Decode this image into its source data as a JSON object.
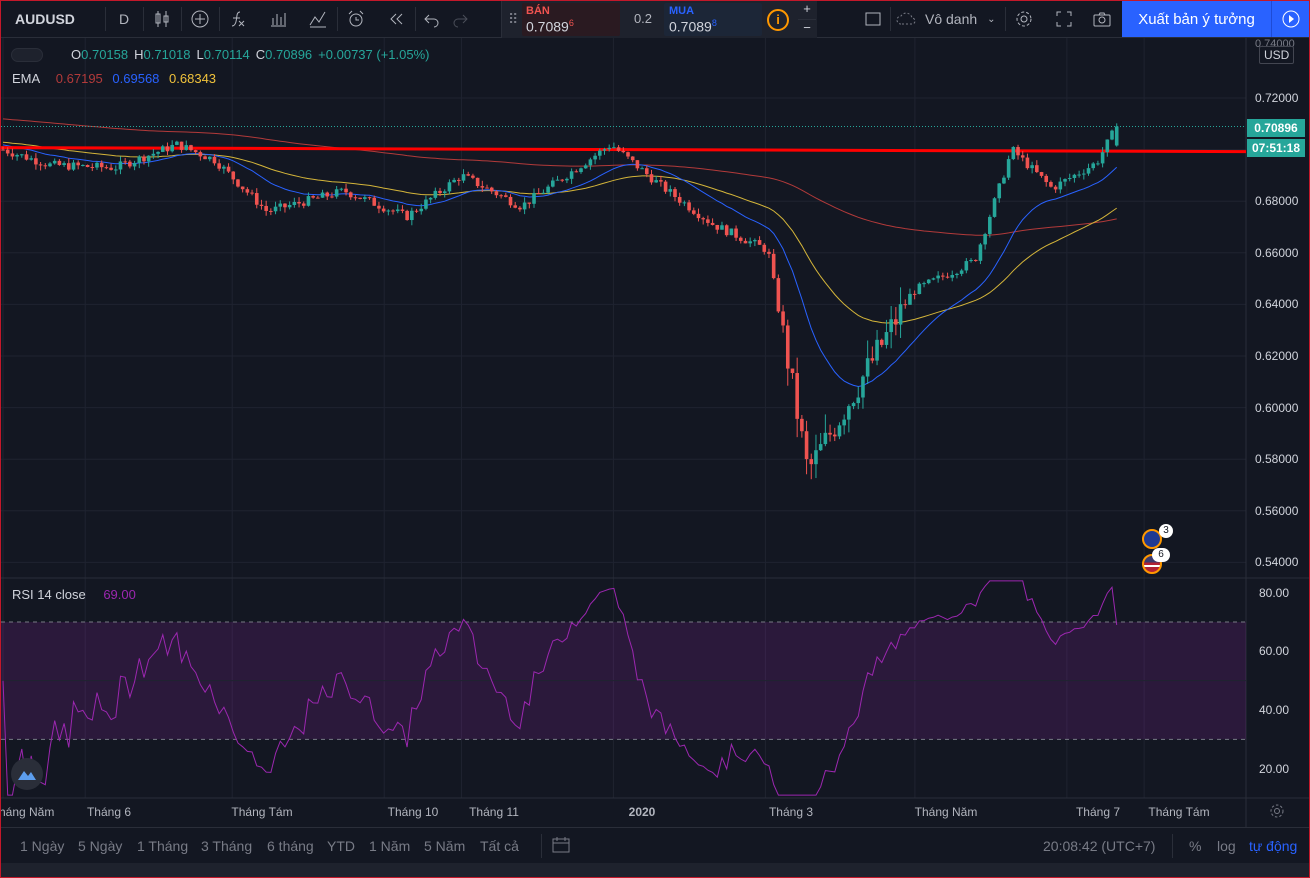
{
  "toolbar": {
    "symbol": "AUDUSD",
    "interval": "D",
    "sell_label": "BÁN",
    "sell_price": "0.7089",
    "sell_sup": "6",
    "spread": "0.2",
    "buy_label": "MUA",
    "buy_price": "0.7089",
    "buy_sup": "8",
    "layout_name": "Vô danh",
    "publish_label": "Xuất bản ý tưởng",
    "plus": "+",
    "minus": "−"
  },
  "legend": {
    "o_label": "O",
    "o_val": "0.70158",
    "h_label": "H",
    "h_val": "0.71018",
    "l_label": "L",
    "l_val": "0.70114",
    "c_label": "C",
    "c_val": "0.70896",
    "change": "+0.00737 (+1.05%)"
  },
  "ema": {
    "label": "EMA",
    "v1": "0.67195",
    "v2": "0.69568",
    "v3": "0.68343"
  },
  "rsi": {
    "label": "RSI 14 close",
    "value": "69.00"
  },
  "currency": "USD",
  "price_badge": "0.70896",
  "time_badge": "07:51:18",
  "y_ticks": [
    "0.72000",
    "0.70000",
    "0.68000",
    "0.66000",
    "0.64000",
    "0.62000",
    "0.60000",
    "0.58000",
    "0.56000",
    "0.54000"
  ],
  "y_top_partial": "0.74000",
  "rsi_ticks": [
    "80.00",
    "60.00",
    "40.00",
    "20.00"
  ],
  "x_ticks": [
    "Tháng Năm",
    "Tháng 6",
    "Tháng Tám",
    "Tháng 10",
    "Tháng 11",
    "2020",
    "Tháng 3",
    "Tháng Năm",
    "Tháng 7",
    "Tháng Tám"
  ],
  "events": {
    "au_count": "3",
    "us_count": "6"
  },
  "ranges": [
    "1 Ngày",
    "5 Ngày",
    "1 Tháng",
    "3 Tháng",
    "6 tháng",
    "YTD",
    "1 Năm",
    "5 Năm",
    "Tất cả"
  ],
  "clock": "20:08:42 (UTC+7)",
  "pct": "%",
  "log": "log",
  "auto": "tự động",
  "colors": {
    "bg": "#131722",
    "up": "#26a69a",
    "down": "#ef5350",
    "ema_fast": "#2962ff",
    "ema_mid": "#d4b53a",
    "ema_slow": "#b23a3a",
    "rsi": "#9c27b0",
    "hline": "#ff0000",
    "accent": "#2962ff"
  },
  "chart_data": {
    "type": "candlestick",
    "symbol": "AUDUSD",
    "timeframe": "D",
    "ylim": [
      0.535,
      0.745
    ],
    "last": {
      "open": 0.70158,
      "high": 0.71018,
      "low": 0.70114,
      "close": 0.70896
    },
    "horizontal_line": 0.7,
    "close_path": [
      {
        "t": "2019-05-01",
        "c": 0.7
      },
      {
        "t": "2019-05-20",
        "c": 0.694
      },
      {
        "t": "2019-06-15",
        "c": 0.693
      },
      {
        "t": "2019-07-10",
        "c": 0.702
      },
      {
        "t": "2019-07-25",
        "c": 0.696
      },
      {
        "t": "2019-08-15",
        "c": 0.676
      },
      {
        "t": "2019-09-15",
        "c": 0.684
      },
      {
        "t": "2019-10-10",
        "c": 0.674
      },
      {
        "t": "2019-11-01",
        "c": 0.69
      },
      {
        "t": "2019-11-25",
        "c": 0.678
      },
      {
        "t": "2019-12-31",
        "c": 0.702
      },
      {
        "t": "2020-01-20",
        "c": 0.686
      },
      {
        "t": "2020-02-10",
        "c": 0.671
      },
      {
        "t": "2020-03-03",
        "c": 0.661
      },
      {
        "t": "2020-03-19",
        "c": 0.575
      },
      {
        "t": "2020-04-03",
        "c": 0.6
      },
      {
        "t": "2020-04-30",
        "c": 0.645
      },
      {
        "t": "2020-05-25",
        "c": 0.657
      },
      {
        "t": "2020-06-09",
        "c": 0.7
      },
      {
        "t": "2020-06-25",
        "c": 0.685
      },
      {
        "t": "2020-07-13",
        "c": 0.695
      },
      {
        "t": "2020-07-21",
        "c": 0.709
      }
    ],
    "rsi_series": {
      "name": "RSI 14 close",
      "ylim": [
        10,
        85
      ],
      "bands": [
        30,
        70
      ],
      "last": 69
    }
  }
}
